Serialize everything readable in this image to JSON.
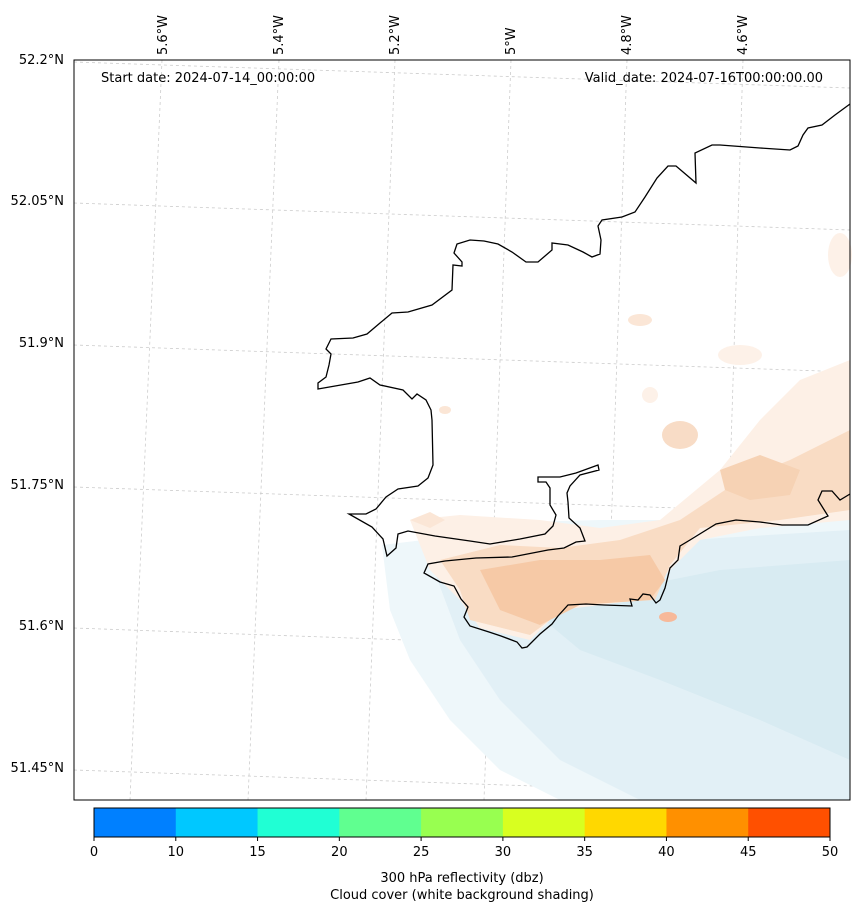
{
  "map": {
    "start_date": "Start date: 2024-07-14_00:00:00",
    "valid_date": "Valid_date: 2024-07-16T00:00:00.00",
    "lat_labels": [
      "52.2°N",
      "52.05°N",
      "51.9°N",
      "51.75°N",
      "51.6°N",
      "51.45°N"
    ],
    "lon_labels": [
      "5.6°W",
      "5.4°W",
      "5.2°W",
      "5°W",
      "4.8°W",
      "4.6°W"
    ]
  },
  "colorbar": {
    "ticks": [
      "0",
      "10",
      "15",
      "20",
      "25",
      "30",
      "35",
      "40",
      "45",
      "50"
    ],
    "colors": [
      "#0080ff",
      "#00c8ff",
      "#20ffd4",
      "#60ff90",
      "#98ff50",
      "#d8ff20",
      "#ffd800",
      "#ff9000",
      "#ff5000"
    ],
    "title_line1": "300 hPa reflectivity (dbz)",
    "title_line2": "Cloud cover (white background shading)"
  },
  "colors": {
    "cloud_blue": "#d8ebf2",
    "reflect_orange": "#f6c9a6",
    "coast": "#000000"
  }
}
